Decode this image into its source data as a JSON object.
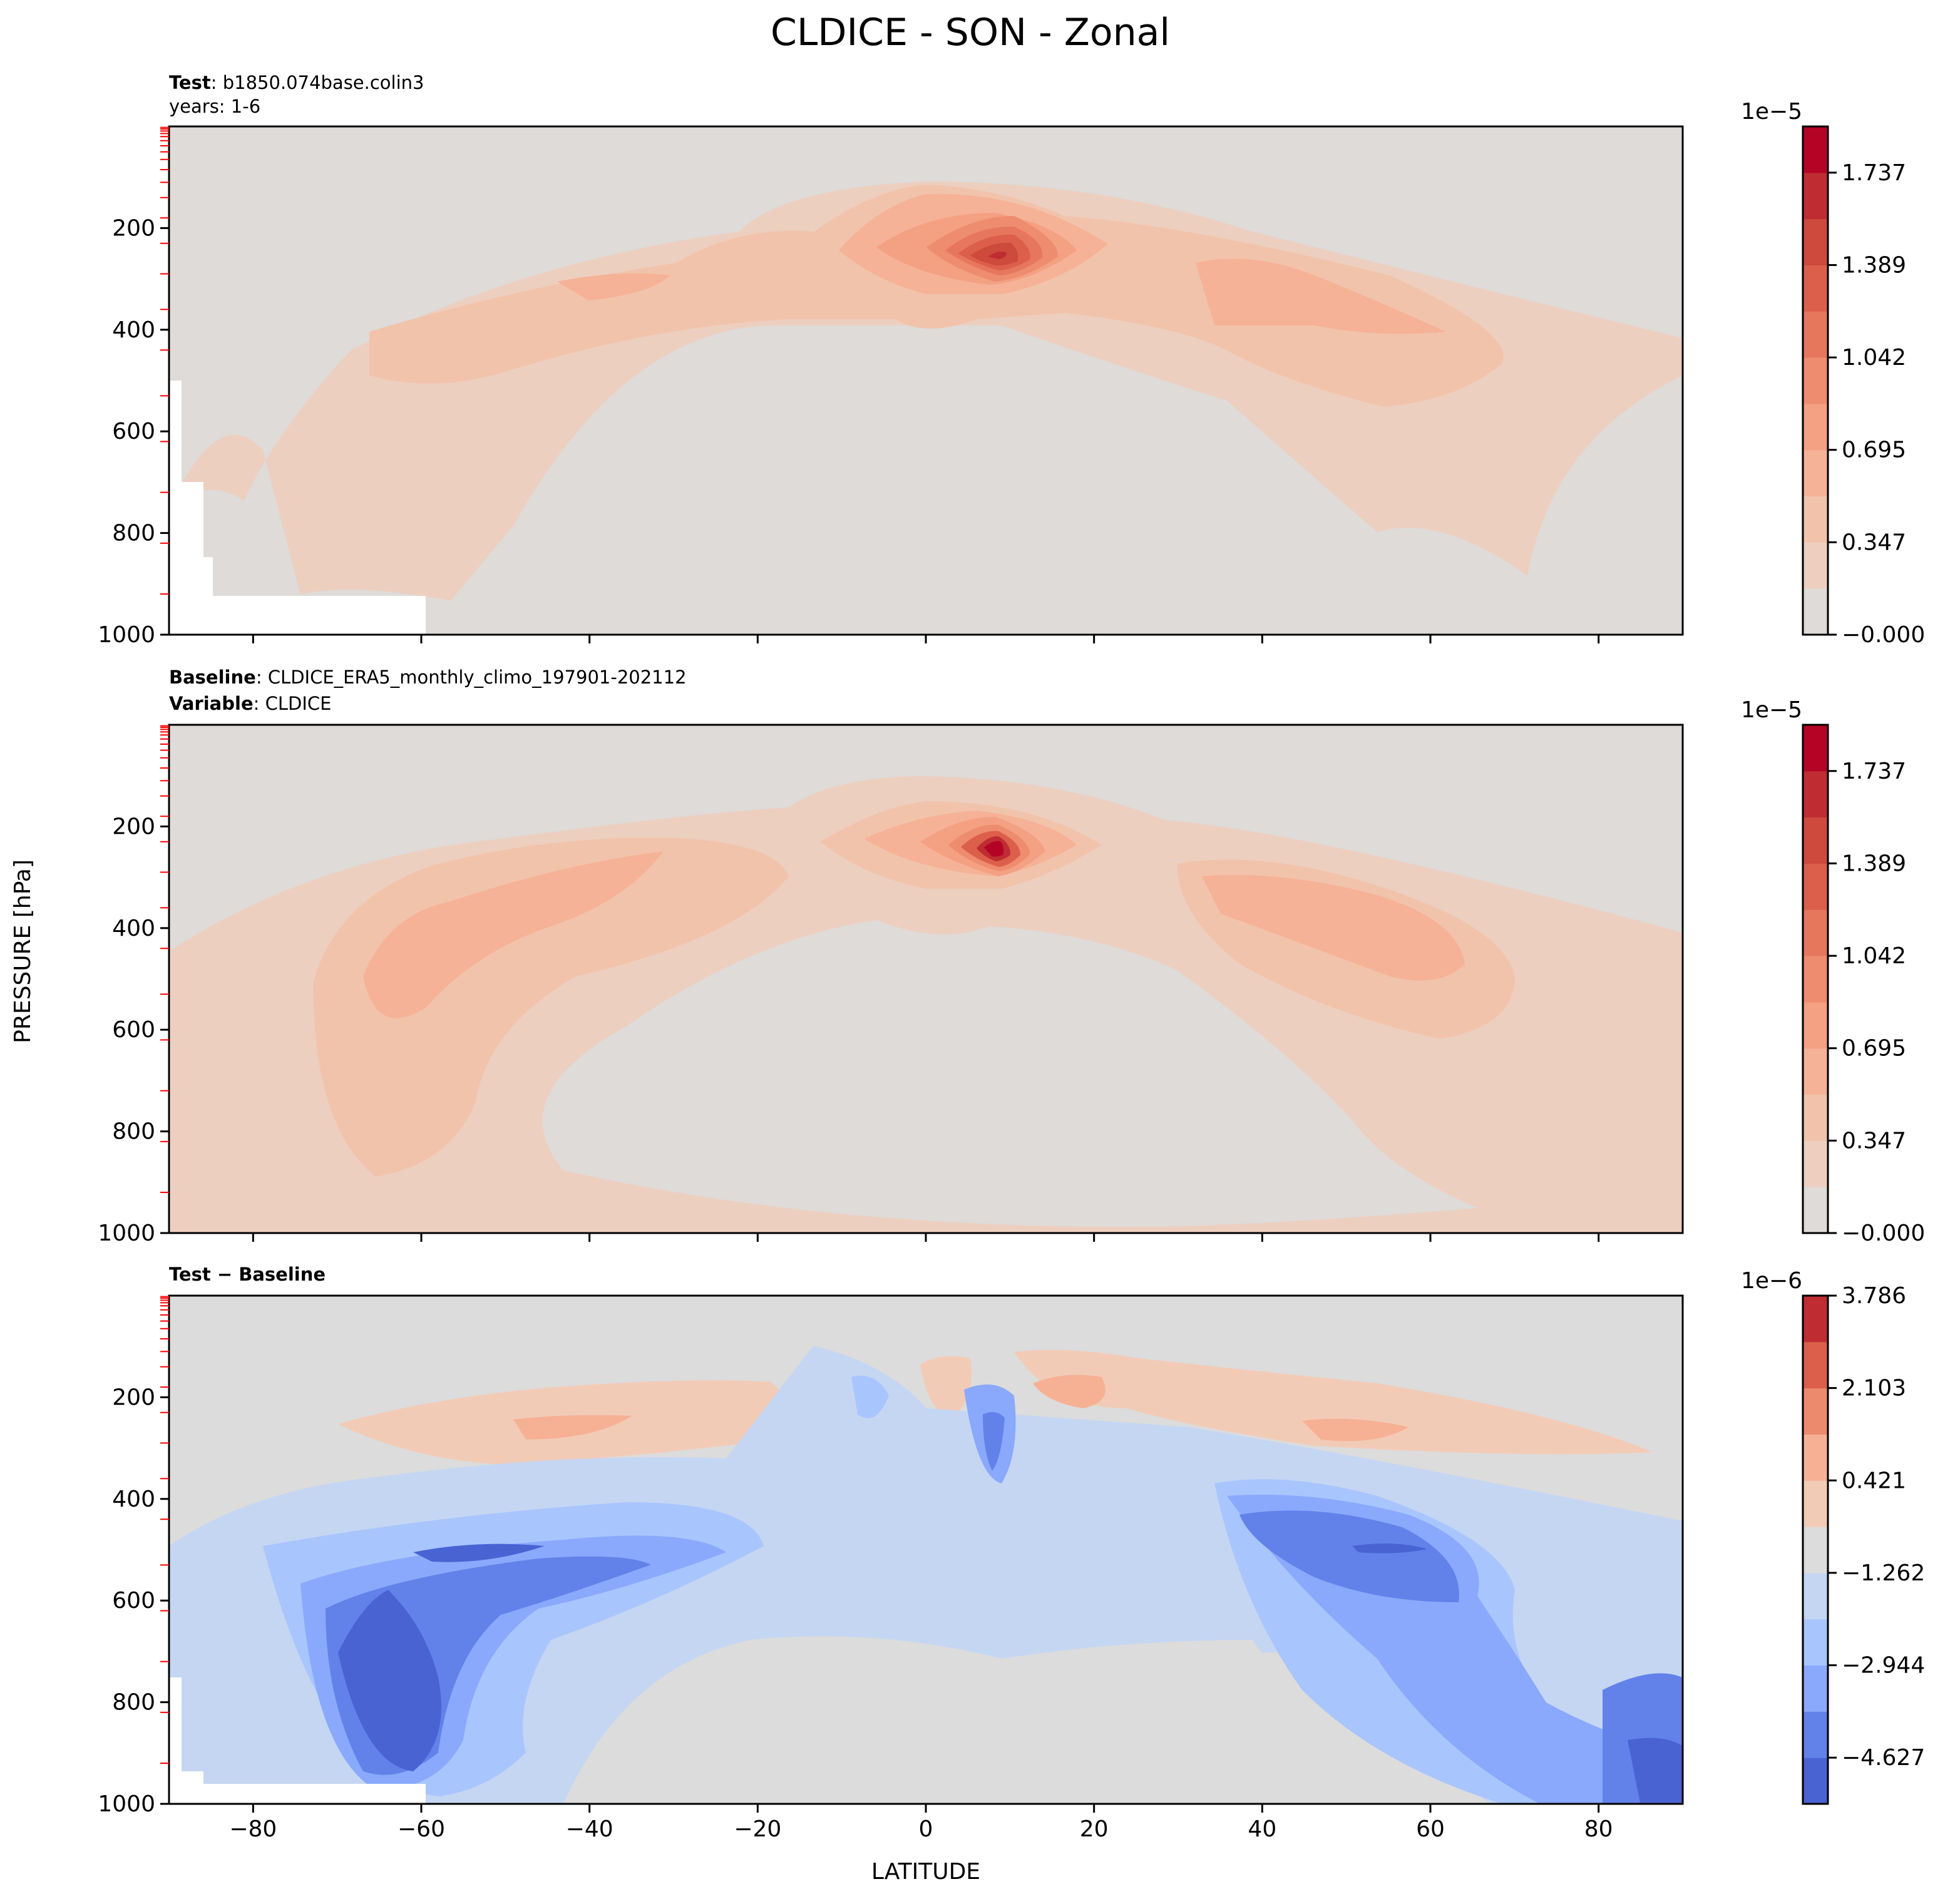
{
  "figure_title": "CLDICE - SON - Zonal",
  "ylabel_shared": "PRESSURE [hPa]",
  "xlabel_shared": "LATITUDE",
  "chart_data": [
    {
      "type": "contour",
      "panel": "test",
      "header": [
        {
          "bold": "Test",
          "text": "b1850.074base.colin3"
        },
        {
          "bold": "",
          "text": "years: 1-6"
        }
      ],
      "x": [
        -90,
        90
      ],
      "xticks": [
        -80,
        -60,
        -40,
        -20,
        0,
        20,
        40,
        60,
        80
      ],
      "ylim": [
        0,
        1000
      ],
      "yticks": [
        200,
        400,
        600,
        800,
        1000
      ],
      "colorbar": {
        "exponent": "1e−5",
        "ticks": [
          "−0.000",
          "0.347",
          "0.695",
          "1.042",
          "1.389",
          "1.737"
        ],
        "levels": 11,
        "colors": [
          "#dedbd8",
          "#edcfc0",
          "#f2c3ab",
          "#f5b297",
          "#f4a082",
          "#ee8c6f",
          "#e6775d",
          "#dc5f4b",
          "#cd4a3d",
          "#bf2c32",
          "#b40426"
        ]
      },
      "features": [
        {
          "lat": 8,
          "p": 240,
          "peak_level": 10
        },
        {
          "lat": -35,
          "p": 300,
          "peak_level": 3
        },
        {
          "lat": 45,
          "p": 320,
          "peak_level": 3
        }
      ]
    },
    {
      "type": "contour",
      "panel": "baseline",
      "header": [
        {
          "bold": "Baseline",
          "text": "CLDICE_ERA5_monthly_climo_197901-202112"
        },
        {
          "bold": "Variable",
          "text": "CLDICE"
        }
      ],
      "x": [
        -90,
        90
      ],
      "xticks": [
        -80,
        -60,
        -40,
        -20,
        0,
        20,
        40,
        60,
        80
      ],
      "ylim": [
        0,
        1000
      ],
      "yticks": [
        200,
        400,
        600,
        800,
        1000
      ],
      "colorbar": {
        "exponent": "1e−5",
        "ticks": [
          "−0.000",
          "0.347",
          "0.695",
          "1.042",
          "1.389",
          "1.737"
        ],
        "levels": 11,
        "colors": [
          "#dedbd8",
          "#edcfc0",
          "#f2c3ab",
          "#f5b297",
          "#f4a082",
          "#ee8c6f",
          "#e6775d",
          "#dc5f4b",
          "#cd4a3d",
          "#bf2c32",
          "#b40426"
        ]
      },
      "features": [
        {
          "lat": 8,
          "p": 240,
          "peak_level": 10
        },
        {
          "lat": -55,
          "p": 550,
          "peak_level": 4
        },
        {
          "lat": 55,
          "p": 480,
          "peak_level": 4
        }
      ]
    },
    {
      "type": "contour",
      "panel": "difference",
      "header": [
        {
          "bold": "Test − Baseline",
          "text": ""
        }
      ],
      "x": [
        -90,
        90
      ],
      "xticks": [
        -80,
        -60,
        -40,
        -20,
        0,
        20,
        40,
        60,
        80
      ],
      "xtick_labels": [
        "−80",
        "−60",
        "−40",
        "−20",
        "0",
        "20",
        "40",
        "60",
        "80"
      ],
      "ylim": [
        0,
        1000
      ],
      "yticks": [
        200,
        400,
        600,
        800,
        1000
      ],
      "colorbar": {
        "exponent": "1e−6",
        "ticks": [
          "−4.627",
          "−2.944",
          "−1.262",
          "0.421",
          "2.103",
          "3.786"
        ],
        "levels": 11,
        "colors": [
          "#4a63d3",
          "#6282ea",
          "#8aa9fc",
          "#a9c5fe",
          "#c5d6f2",
          "#dcdcdc",
          "#f2cbb7",
          "#f6b194",
          "#ec8a6e",
          "#dc5f4b",
          "#bf2c32"
        ]
      },
      "features": [
        {
          "lat": -60,
          "p": 700,
          "min_level": 0
        },
        {
          "lat": 55,
          "p": 500,
          "min_level": 0
        },
        {
          "lat": 15,
          "p": 220,
          "peak_level": 8
        }
      ]
    }
  ]
}
